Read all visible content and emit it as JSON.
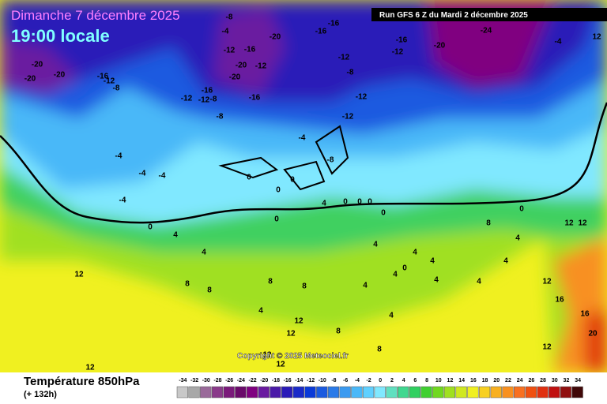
{
  "header": {
    "date": "Dimanche 7 décembre 2025",
    "time": "19:00 locale",
    "run": "Run GFS 6 Z du Mardi 2 décembre 2025"
  },
  "copyright": "Copyright © 2025 Meteociel.fr",
  "contour_labels": [
    -20,
    -20,
    -20,
    -16,
    -12,
    -8,
    -8,
    -4,
    -16,
    -12,
    -20,
    -20,
    -12,
    -16,
    -12,
    -12,
    -8,
    -16,
    -8,
    -20,
    -16,
    -16,
    -12,
    -8,
    -12,
    -12,
    -16,
    -12,
    -20,
    -24,
    -4,
    -4,
    -8,
    -4,
    -4,
    -4,
    -4,
    0,
    0,
    0,
    0,
    4,
    0,
    0,
    0,
    0,
    0,
    4,
    4,
    8,
    8,
    8,
    8,
    12,
    12,
    12,
    8,
    8,
    12,
    12,
    8,
    4,
    4,
    4,
    4,
    12,
    12,
    12,
    16,
    16,
    20,
    12,
    4,
    4,
    4,
    0,
    4,
    4,
    4,
    0,
    4,
    12,
    12
  ],
  "footer": {
    "title": "Température 850hPa",
    "lead": "(+ 132h)"
  },
  "legend": {
    "values": [
      -34,
      -32,
      -30,
      -28,
      -26,
      -24,
      -22,
      -20,
      -18,
      -16,
      -14,
      -12,
      -10,
      -8,
      -6,
      -4,
      -2,
      0,
      2,
      4,
      6,
      8,
      10,
      12,
      14,
      16,
      18,
      20,
      22,
      24,
      26,
      28,
      30,
      32,
      34
    ],
    "colors": [
      "#c8c8c8",
      "#a8a8a8",
      "#9a6a9a",
      "#8a3a8a",
      "#7a1a7a",
      "#6a0a6a",
      "#800080",
      "#6a1aa0",
      "#4a1aa8",
      "#2a1ab8",
      "#1a2ac8",
      "#0a3ad8",
      "#1a5ae0",
      "#2a7ae8",
      "#3a9af0",
      "#4ab8f8",
      "#60d0ff",
      "#80e8ff",
      "#60e0c0",
      "#40d890",
      "#30d060",
      "#40d030",
      "#70d820",
      "#a0e020",
      "#d0e820",
      "#f0f020",
      "#f8d020",
      "#f8b020",
      "#f89020",
      "#f87020",
      "#f05010",
      "#e03010",
      "#c01010",
      "#901010",
      "#400808"
    ]
  }
}
